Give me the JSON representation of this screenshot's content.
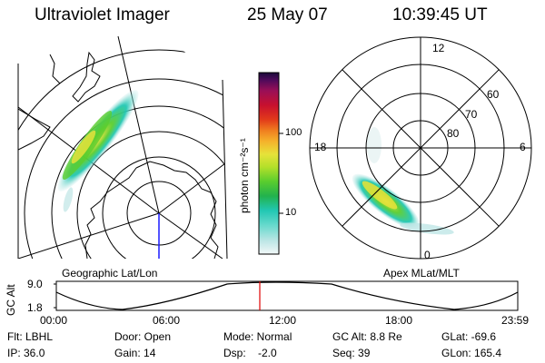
{
  "header": {
    "instrument": "Ultraviolet Imager",
    "date": "25 May 07",
    "time": "10:39:45 UT"
  },
  "colorbar": {
    "unit_label": "photon cm⁻²s⁻¹",
    "scale": "log",
    "ticks": [
      "100",
      "10"
    ],
    "colors": [
      "#e6f2f2",
      "#bfe6e6",
      "#66d9cc",
      "#22c7b3",
      "#22b24d",
      "#5acd2e",
      "#b4e02a",
      "#e6e23a",
      "#f5b32b",
      "#f07f1f",
      "#e23b1a",
      "#c8102e",
      "#9a0f57",
      "#4d0a5a",
      "#1a0a3a"
    ]
  },
  "left_map": {
    "caption": "Geographic Lat/Lon",
    "meridian_color": "#1a1aff"
  },
  "right_map": {
    "caption": "Apex MLat/MLT",
    "mlt_labels": [
      "12",
      "18",
      "6",
      "0"
    ],
    "mlat_labels": [
      "60",
      "70",
      "80"
    ]
  },
  "timeline": {
    "ylabel": "GC Alt",
    "yticks": [
      "9.0",
      "1.8"
    ],
    "xticks": [
      "00:00",
      "06:00",
      "12:00",
      "18:00",
      "23:59"
    ],
    "marker_color": "#e00000"
  },
  "footer": {
    "rows": [
      [
        "Flt: LBHL",
        "Door: Open",
        "Mode: Normal",
        "GC Alt: 8.8 Re",
        "GLat: -69.6"
      ],
      [
        "IP: 36.0",
        "Gain: 14",
        "Dsp:    -2.0",
        "Seq: 39",
        "GLon: 165.4"
      ]
    ]
  }
}
